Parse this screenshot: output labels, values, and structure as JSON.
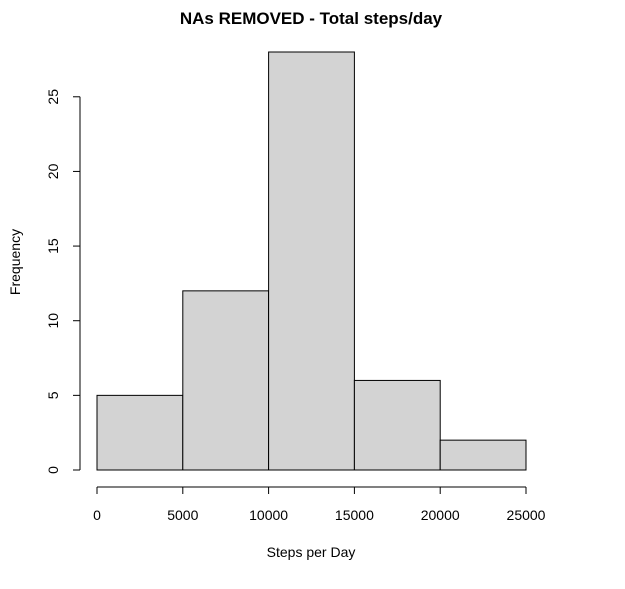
{
  "chart_data": {
    "type": "bar",
    "title": "NAs REMOVED - Total steps/day",
    "xlabel": "Steps per Day",
    "ylabel": "Frequency",
    "bins": [
      {
        "from": 0,
        "to": 5000,
        "count": 5
      },
      {
        "from": 5000,
        "to": 10000,
        "count": 12
      },
      {
        "from": 10000,
        "to": 15000,
        "count": 28
      },
      {
        "from": 15000,
        "to": 20000,
        "count": 6
      },
      {
        "from": 20000,
        "to": 25000,
        "count": 2
      }
    ],
    "xlim": [
      0,
      25000
    ],
    "ylim": [
      0,
      28
    ],
    "xticks": [
      "0",
      "5000",
      "10000",
      "15000",
      "20000",
      "25000"
    ],
    "yticks": [
      "0",
      "5",
      "10",
      "15",
      "20",
      "25"
    ],
    "colors": {
      "bar_fill": "#d3d3d3",
      "bar_stroke": "#000000"
    },
    "grid": false,
    "legend": "none"
  }
}
